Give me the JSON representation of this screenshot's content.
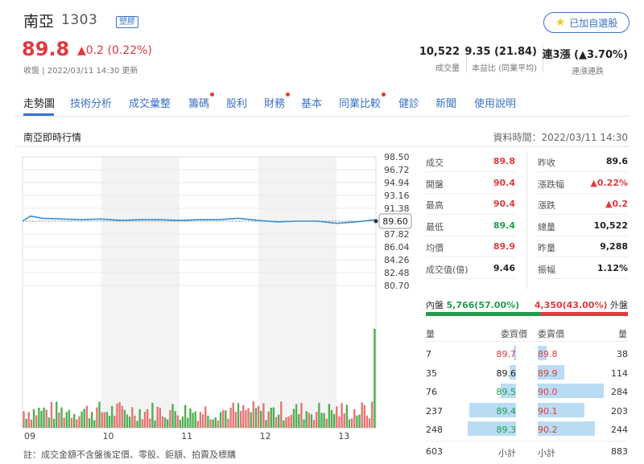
{
  "stock": {
    "name": "南亞",
    "code": "1303",
    "tag": "塑膠",
    "price": "89.8",
    "change": "▲0.2 (0.22%)",
    "close_note": "收盤 | 2022/03/11 14:30 更新",
    "watch_label": "已加自選股",
    "icons": [
      "star-icon"
    ]
  },
  "stats": [
    {
      "value": "10,522",
      "label": "成交量"
    },
    {
      "value": "9.35 (21.84)",
      "label": "本益比 (同業平均)"
    },
    {
      "value": "連3漲 (▲3.70%)",
      "label": "連漲連跌"
    }
  ],
  "tabs": [
    {
      "label": "走勢圖",
      "dot": false
    },
    {
      "label": "技術分析",
      "dot": false
    },
    {
      "label": "成交彙整",
      "dot": false
    },
    {
      "label": "籌碼",
      "dot": true
    },
    {
      "label": "股利",
      "dot": false
    },
    {
      "label": "財務",
      "dot": true
    },
    {
      "label": "基本",
      "dot": false
    },
    {
      "label": "同業比較",
      "dot": true
    },
    {
      "label": "健診",
      "dot": false
    },
    {
      "label": "新聞",
      "dot": false
    },
    {
      "label": "使用說明",
      "dot": false
    }
  ],
  "section": {
    "title": "南亞即時行情",
    "data_time": "資料時間：2022/03/11 14:30"
  },
  "chart_note": "註：成交金額不含盤後定價、零股、鉅額、拍賣及標購",
  "chart_data": {
    "type": "line",
    "x_tick_labels": [
      "09",
      "10",
      "11",
      "12",
      "13"
    ],
    "y_tick_labels": [
      "98.50",
      "96.72",
      "94.94",
      "93.16",
      "91.38",
      "89.60",
      "87.82",
      "86.04",
      "84.26",
      "82.48",
      "80.70"
    ],
    "ylim": [
      80.7,
      98.5
    ],
    "reference_price": 89.6,
    "last_price_label": "89.60",
    "series": [
      {
        "x": [
          9.0,
          9.1,
          9.25,
          9.5,
          9.75,
          10.0,
          10.25,
          10.5,
          10.75,
          11.0,
          11.25,
          11.5,
          11.75,
          12.0,
          12.25,
          12.5,
          12.75,
          13.0,
          13.25,
          13.5
        ],
        "values": [
          89.6,
          90.3,
          90.0,
          89.9,
          89.8,
          89.9,
          89.7,
          89.8,
          89.8,
          89.7,
          89.8,
          89.8,
          90.0,
          89.7,
          89.5,
          89.6,
          89.6,
          89.3,
          89.5,
          89.8
        ]
      }
    ],
    "volume": {
      "seed": 7,
      "bars": 140,
      "last_bar_ratio": 0.88,
      "typical_ratio": 0.2
    }
  },
  "quotes_left": [
    {
      "label": "成交",
      "value": "89.8",
      "color": "red"
    },
    {
      "label": "開盤",
      "value": "90.4",
      "color": "red"
    },
    {
      "label": "最高",
      "value": "90.4",
      "color": "red"
    },
    {
      "label": "最低",
      "value": "89.4",
      "color": "green"
    },
    {
      "label": "均價",
      "value": "89.9",
      "color": "red"
    },
    {
      "label": "成交值(億)",
      "value": "9.46",
      "color": "dark"
    }
  ],
  "quotes_right": [
    {
      "label": "昨收",
      "value": "89.6",
      "color": "dark"
    },
    {
      "label": "漲跌幅",
      "value": "▲0.22%",
      "color": "red"
    },
    {
      "label": "漲跌",
      "value": "▲0.2",
      "color": "red"
    },
    {
      "label": "總量",
      "value": "10,522",
      "color": "dark"
    },
    {
      "label": "昨量",
      "value": "9,288",
      "color": "dark"
    },
    {
      "label": "振幅",
      "value": "1.12%",
      "color": "dark"
    }
  ],
  "inout": {
    "in_label": "內盤",
    "in_value": "5,766(57.00%)",
    "out_value": "4,350(43.00%)",
    "out_label": "外盤",
    "in_ratio": 0.57
  },
  "order_book": {
    "bid_headers": [
      "量",
      "委買價"
    ],
    "ask_headers": [
      "委賣價",
      "量"
    ],
    "bids": [
      {
        "qty": "7",
        "price": "89.7",
        "color": "red",
        "ratio": 0.03
      },
      {
        "qty": "35",
        "price": "89.6",
        "color": "dark",
        "ratio": 0.14
      },
      {
        "qty": "76",
        "price": "89.5",
        "color": "green",
        "ratio": 0.31
      },
      {
        "qty": "237",
        "price": "89.4",
        "color": "green",
        "ratio": 0.96
      },
      {
        "qty": "248",
        "price": "89.3",
        "color": "green",
        "ratio": 1.0
      }
    ],
    "asks": [
      {
        "price": "89.8",
        "qty": "38",
        "color": "red",
        "ratio": 0.13
      },
      {
        "price": "89.9",
        "qty": "114",
        "color": "red",
        "ratio": 0.4
      },
      {
        "price": "90.0",
        "qty": "284",
        "color": "red",
        "ratio": 1.0
      },
      {
        "price": "90.1",
        "qty": "203",
        "color": "red",
        "ratio": 0.71
      },
      {
        "price": "90.2",
        "qty": "244",
        "color": "red",
        "ratio": 0.86
      }
    ],
    "bid_total": "603",
    "bid_total_label": "小計",
    "ask_total_label": "小計",
    "ask_total": "883"
  }
}
